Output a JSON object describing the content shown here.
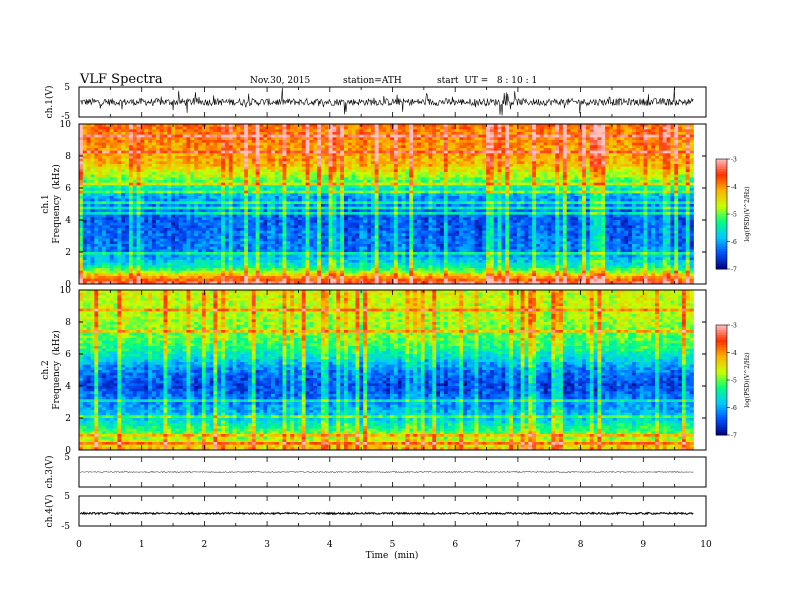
{
  "header": {
    "title": "VLF  Spectra",
    "date": "Nov.30, 2015",
    "station": "station=ATH",
    "start_ut": "start  UT =   8 : 10 : 1"
  },
  "chart_data": [
    {
      "type": "line",
      "id": "ch1-waveform",
      "ylabel": "ch.1(V)",
      "ylim": [
        -5,
        5
      ],
      "y_tick_labels": [
        "5",
        "-5"
      ],
      "series": [
        {
          "mean_level": 0,
          "noise_amplitude": 1.2,
          "spike_amplitude": 4
        }
      ]
    },
    {
      "type": "heatmap",
      "id": "ch1-spectrogram",
      "ylabel_top": "ch.1",
      "ylabel": "Frequency  (kHz)",
      "ylim": [
        0,
        10
      ],
      "yticks": [
        "0",
        "2",
        "4",
        "6",
        "8",
        "10"
      ],
      "colorbar": {
        "label": "log(PSD)(V^2/Hz)",
        "range": [
          -7,
          -3
        ],
        "ticks": [
          "-3",
          "-4",
          "-5",
          "-6",
          "-7"
        ],
        "colors": [
          "#000080",
          "#0050ff",
          "#00c8ff",
          "#00ff80",
          "#c8ff00",
          "#ffb000",
          "#ff3000",
          "#ffc0c0"
        ]
      },
      "frequency_profile": [
        {
          "f": 0.0,
          "level": -3.2
        },
        {
          "f": 0.5,
          "level": -4.2
        },
        {
          "f": 1.0,
          "level": -5.4
        },
        {
          "f": 2.0,
          "level": -6.2
        },
        {
          "f": 4.0,
          "level": -6.4
        },
        {
          "f": 5.5,
          "level": -6.0
        },
        {
          "f": 6.5,
          "level": -5.0
        },
        {
          "f": 7.5,
          "level": -4.2
        },
        {
          "f": 10.0,
          "level": -3.8
        }
      ]
    },
    {
      "type": "heatmap",
      "id": "ch2-spectrogram",
      "ylabel_top": "ch.2",
      "ylabel": "Frequency  (kHz)",
      "ylim": [
        0,
        10
      ],
      "yticks": [
        "0",
        "2",
        "4",
        "6",
        "8",
        "10"
      ],
      "colorbar": {
        "label": "log(PSD)(V^2/Hz)",
        "range": [
          -7,
          -3
        ],
        "ticks": [
          "-3",
          "-4",
          "-5",
          "-6",
          "-7"
        ],
        "colors": [
          "#000080",
          "#0050ff",
          "#00c8ff",
          "#00ff80",
          "#c8ff00",
          "#ffb000",
          "#ff3000",
          "#ffc0c0"
        ]
      },
      "frequency_profile": [
        {
          "f": 0.0,
          "level": -4.2
        },
        {
          "f": 1.0,
          "level": -5.0
        },
        {
          "f": 2.0,
          "level": -5.8
        },
        {
          "f": 4.0,
          "level": -6.5
        },
        {
          "f": 5.0,
          "level": -6.2
        },
        {
          "f": 6.5,
          "level": -5.2
        },
        {
          "f": 8.0,
          "level": -4.8
        },
        {
          "f": 10.0,
          "level": -4.6
        }
      ]
    },
    {
      "type": "line",
      "id": "ch3-waveform",
      "ylabel": "ch.3(V)",
      "ylim": [
        -5,
        5
      ],
      "y_tick_labels": [
        "5"
      ],
      "series": [
        {
          "mean_level": 0,
          "noise_amplitude": 0.2,
          "spike_amplitude": 0
        }
      ]
    },
    {
      "type": "line",
      "id": "ch4-waveform",
      "ylabel": "ch.4(V)",
      "ylim": [
        -5,
        5
      ],
      "y_tick_labels": [
        "5",
        "-5"
      ],
      "series": [
        {
          "mean_level": -0.8,
          "noise_amplitude": 0.3,
          "spike_amplitude": 0
        }
      ]
    }
  ],
  "x_axis": {
    "label": "Time  (min)",
    "xlim": [
      0,
      10
    ],
    "ticks": [
      "0",
      "1",
      "2",
      "3",
      "4",
      "5",
      "6",
      "7",
      "8",
      "9",
      "10"
    ],
    "data_end": 9.8
  },
  "colors": {
    "frame": "#000000",
    "background": "#ffffff",
    "trace": "#000000"
  }
}
